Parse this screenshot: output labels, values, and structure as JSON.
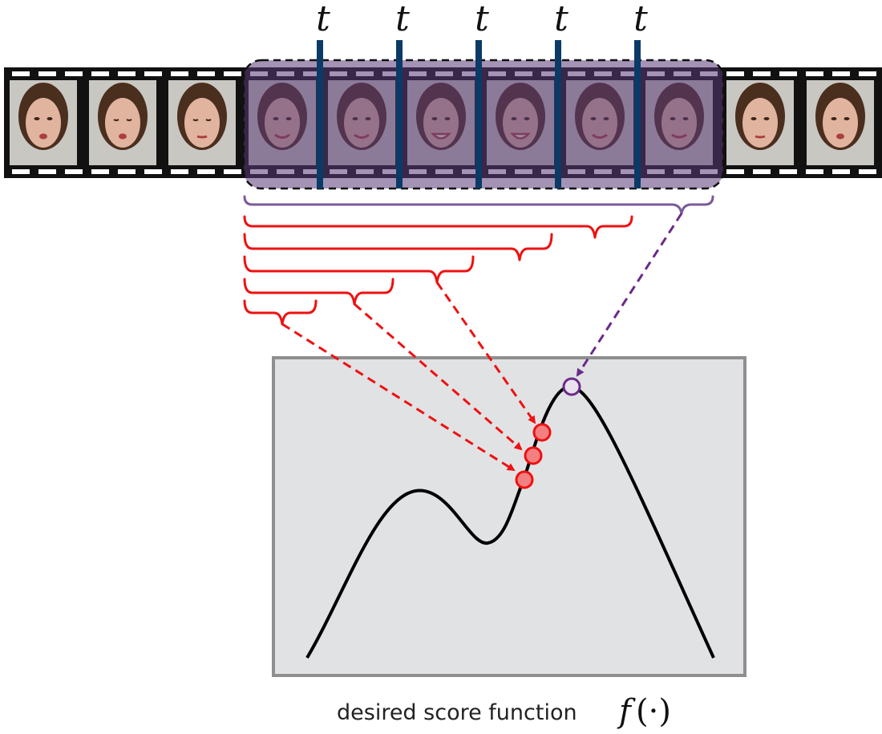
{
  "markers": [
    "t",
    "t",
    "t",
    "t",
    "t"
  ],
  "caption": {
    "text": "desired score function",
    "function_name": "f",
    "function_arg": "(·)"
  },
  "colors": {
    "film": "#111111",
    "frame_bg": "#c8c8c8",
    "window_fill": "#5a3a78",
    "window_border": "#111111",
    "marker": "#0b3a66",
    "red": "#ee1111",
    "purple": "#6a2a8a",
    "brace_purple": "#7a5a9a",
    "panel_fill": "#e1e2e4",
    "panel_border": "#8f8f8f",
    "point_fill": "#f28080",
    "curve": "#000000"
  }
}
